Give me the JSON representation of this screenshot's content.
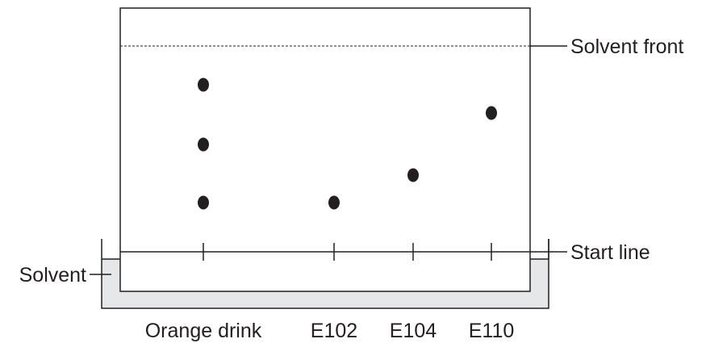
{
  "labels": {
    "solvent_front": "Solvent front",
    "start_line": "Start line",
    "solvent": "Solvent"
  },
  "lanes": [
    {
      "name": "Orange drink",
      "spots": 3
    },
    {
      "name": "E102",
      "spots": 1
    },
    {
      "name": "E104",
      "spots": 1
    },
    {
      "name": "E110",
      "spots": 1
    }
  ],
  "colors": {
    "ink": "#231f20",
    "solvent_fill": "#e6e7e8",
    "paper": "#ffffff"
  }
}
